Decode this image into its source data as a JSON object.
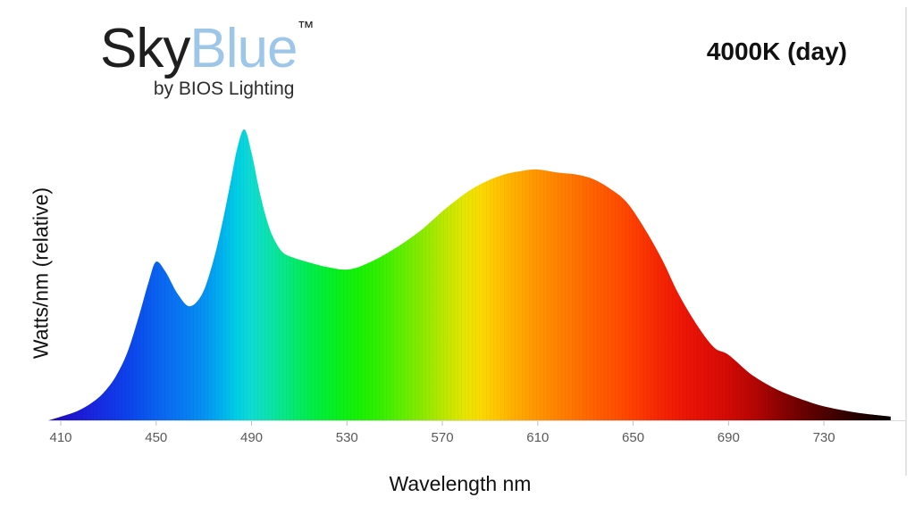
{
  "header": {
    "logo": {
      "part1": "Sky",
      "part2": "Blue",
      "trademark": "™",
      "tagline": "by BIOS Lighting"
    },
    "mode_label": "4000K (day)"
  },
  "colors": {
    "background": "#ffffff",
    "logo_sky": "#1f1f1f",
    "logo_blue": "#9dc6e8",
    "tagline": "#2d2d2d",
    "kelvin_label": "#111111",
    "axis_title": "#111111",
    "tick_label": "#595959",
    "axis_line": "#d9d9d9",
    "tick_mark": "#bfbfbf",
    "frame_line": "#e4e4e4"
  },
  "chart_data": {
    "type": "area",
    "title": "SkyBlue by BIOS Lighting spectral power distribution",
    "annotation": "4000K (day)",
    "xlabel": "Wavelength nm",
    "ylabel": "Watts/nm (relative)",
    "xlim": [
      405,
      760
    ],
    "ylim": [
      0,
      1.05
    ],
    "xticks": [
      410,
      450,
      490,
      530,
      570,
      610,
      650,
      690,
      730
    ],
    "grid": false,
    "legend": "none",
    "series": [
      {
        "name": "4000K (day) spectrum",
        "points": [
          [
            405,
            0
          ],
          [
            411,
            0.015
          ],
          [
            417,
            0.032
          ],
          [
            423,
            0.06
          ],
          [
            428,
            0.095
          ],
          [
            433,
            0.15
          ],
          [
            438,
            0.235
          ],
          [
            443,
            0.365
          ],
          [
            447,
            0.48
          ],
          [
            450,
            0.545
          ],
          [
            454,
            0.51
          ],
          [
            459,
            0.435
          ],
          [
            464,
            0.392
          ],
          [
            469,
            0.43
          ],
          [
            473,
            0.52
          ],
          [
            477,
            0.65
          ],
          [
            481,
            0.81
          ],
          [
            484,
            0.935
          ],
          [
            487,
            1.0
          ],
          [
            490,
            0.92
          ],
          [
            493,
            0.8
          ],
          [
            496,
            0.7
          ],
          [
            499,
            0.63
          ],
          [
            503,
            0.578
          ],
          [
            508,
            0.558
          ],
          [
            514,
            0.543
          ],
          [
            521,
            0.528
          ],
          [
            530,
            0.518
          ],
          [
            538,
            0.537
          ],
          [
            549,
            0.585
          ],
          [
            561,
            0.653
          ],
          [
            572,
            0.732
          ],
          [
            583,
            0.798
          ],
          [
            594,
            0.84
          ],
          [
            604,
            0.858
          ],
          [
            610,
            0.862
          ],
          [
            618,
            0.852
          ],
          [
            626,
            0.845
          ],
          [
            633,
            0.83
          ],
          [
            640,
            0.798
          ],
          [
            647,
            0.752
          ],
          [
            654,
            0.67
          ],
          [
            662,
            0.555
          ],
          [
            669,
            0.435
          ],
          [
            677,
            0.325
          ],
          [
            684,
            0.25
          ],
          [
            690,
            0.225
          ],
          [
            700,
            0.155
          ],
          [
            711,
            0.103
          ],
          [
            722,
            0.068
          ],
          [
            730,
            0.048
          ],
          [
            741,
            0.03
          ],
          [
            750,
            0.02
          ],
          [
            758,
            0.013
          ]
        ]
      }
    ],
    "spectrum_gradient": [
      [
        405,
        "#1c0cb6"
      ],
      [
        415,
        "#1d16d0"
      ],
      [
        424,
        "#1927de"
      ],
      [
        432,
        "#1136e6"
      ],
      [
        440,
        "#0b47ec"
      ],
      [
        448,
        "#0a5cee"
      ],
      [
        456,
        "#096ff2"
      ],
      [
        464,
        "#0780f2"
      ],
      [
        471,
        "#0495f2"
      ],
      [
        478,
        "#00b4ee"
      ],
      [
        484,
        "#00cfe4"
      ],
      [
        490,
        "#0fdcd2"
      ],
      [
        497,
        "#0ce2ae"
      ],
      [
        504,
        "#07e785"
      ],
      [
        511,
        "#03eb5c"
      ],
      [
        518,
        "#01ee3c"
      ],
      [
        526,
        "#07f01e"
      ],
      [
        535,
        "#17f104"
      ],
      [
        544,
        "#33f000"
      ],
      [
        553,
        "#5fee00"
      ],
      [
        562,
        "#8cea00"
      ],
      [
        571,
        "#bce700"
      ],
      [
        579,
        "#e3e600"
      ],
      [
        586,
        "#fada00"
      ],
      [
        593,
        "#ffc400"
      ],
      [
        600,
        "#ffae00"
      ],
      [
        608,
        "#ff9900"
      ],
      [
        616,
        "#ff8700"
      ],
      [
        625,
        "#ff7400"
      ],
      [
        634,
        "#ff6000"
      ],
      [
        643,
        "#ff4f00"
      ],
      [
        652,
        "#fc3b01"
      ],
      [
        661,
        "#f62603"
      ],
      [
        670,
        "#ee1705"
      ],
      [
        680,
        "#e20f06"
      ],
      [
        690,
        "#d20a05"
      ],
      [
        700,
        "#b60604"
      ],
      [
        710,
        "#920302"
      ],
      [
        720,
        "#6e0101"
      ],
      [
        729,
        "#520101"
      ],
      [
        738,
        "#360000"
      ],
      [
        746,
        "#1f0000"
      ],
      [
        753,
        "#0f0000"
      ],
      [
        758,
        "#060000"
      ]
    ]
  }
}
